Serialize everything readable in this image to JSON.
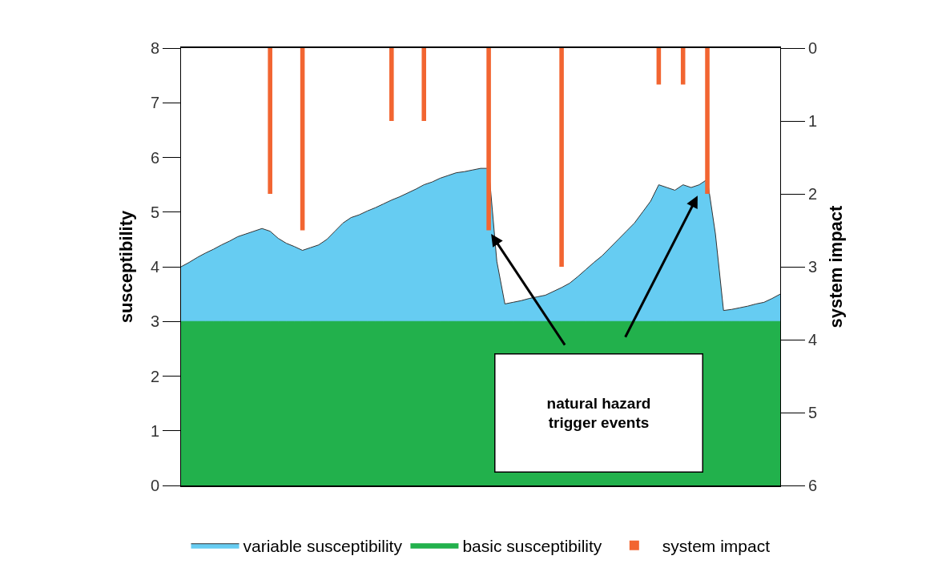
{
  "chart_data": {
    "type": "area",
    "ylabel": "susceptibility",
    "y2label": "system impact",
    "categories": [
      null,
      null,
      null,
      null,
      null,
      null,
      null,
      null,
      null,
      null,
      null,
      null,
      null,
      null,
      null,
      null,
      null,
      null,
      null,
      null,
      null,
      null,
      null,
      null,
      null,
      null,
      null,
      null,
      null,
      null,
      null,
      null,
      null,
      null,
      null,
      null,
      null,
      null,
      null,
      null,
      null,
      null,
      null,
      null,
      null,
      null,
      null,
      null,
      null,
      null,
      null,
      null,
      null,
      null,
      null,
      null,
      null,
      null,
      null,
      null,
      null,
      null,
      null,
      null,
      null,
      null,
      null,
      null,
      null,
      null,
      null,
      null,
      null,
      null,
      null
    ],
    "series": [
      {
        "name": "variable susceptibility",
        "type": "area",
        "color": "#66ccf2",
        "values": [
          4.0,
          4.08,
          4.17,
          4.25,
          4.32,
          4.4,
          4.47,
          4.55,
          4.6,
          4.65,
          4.7,
          4.65,
          4.52,
          4.43,
          4.37,
          4.3,
          4.35,
          4.4,
          4.5,
          4.65,
          4.8,
          4.9,
          4.95,
          5.02,
          5.08,
          5.15,
          5.22,
          5.28,
          5.35,
          5.42,
          5.5,
          5.55,
          5.62,
          5.67,
          5.72,
          5.74,
          5.77,
          5.8,
          5.8,
          4.1,
          3.32,
          3.35,
          3.38,
          3.42,
          3.45,
          3.48,
          3.55,
          3.62,
          3.7,
          3.82,
          3.95,
          4.08,
          4.2,
          4.35,
          4.5,
          4.65,
          4.8,
          5.0,
          5.2,
          5.5,
          5.45,
          5.4,
          5.5,
          5.45,
          5.5,
          5.6,
          4.6,
          3.2,
          3.22,
          3.25,
          3.28,
          3.32,
          3.35,
          3.42,
          3.5
        ]
      },
      {
        "name": "basic susceptibility",
        "type": "area",
        "color": "#22b14c",
        "values": [
          3,
          3,
          3,
          3,
          3,
          3,
          3,
          3,
          3,
          3,
          3,
          3,
          3,
          3,
          3,
          3,
          3,
          3,
          3,
          3,
          3,
          3,
          3,
          3,
          3,
          3,
          3,
          3,
          3,
          3,
          3,
          3,
          3,
          3,
          3,
          3,
          3,
          3,
          3,
          3,
          3,
          3,
          3,
          3,
          3,
          3,
          3,
          3,
          3,
          3,
          3,
          3,
          3,
          3,
          3,
          3,
          3,
          3,
          3,
          3,
          3,
          3,
          3,
          3,
          3,
          3,
          3,
          3,
          3,
          3,
          3,
          3,
          3,
          3,
          3
        ]
      },
      {
        "name": "system impact",
        "type": "bar",
        "axis": "y2",
        "color": "#f26531",
        "values": [
          null,
          null,
          null,
          null,
          null,
          null,
          null,
          null,
          null,
          null,
          null,
          2.0,
          null,
          null,
          null,
          2.5,
          null,
          null,
          null,
          null,
          null,
          null,
          null,
          null,
          null,
          null,
          1.0,
          null,
          null,
          null,
          1.0,
          null,
          null,
          null,
          null,
          null,
          null,
          null,
          2.5,
          null,
          null,
          null,
          null,
          null,
          null,
          null,
          null,
          3.0,
          null,
          null,
          null,
          null,
          null,
          null,
          null,
          null,
          null,
          null,
          null,
          0.5,
          null,
          null,
          0.5,
          null,
          null,
          2.0,
          null,
          null,
          null,
          null,
          null,
          null,
          null,
          null,
          null
        ]
      }
    ],
    "ylim": [
      0,
      8
    ],
    "yticks": [
      0,
      1,
      2,
      3,
      4,
      5,
      6,
      7,
      8
    ],
    "y2lim": [
      6,
      0
    ],
    "y2ticks": [
      0,
      1,
      2,
      3,
      4,
      5,
      6
    ],
    "grid": false,
    "legend": "bottom",
    "annotations": [
      "natural hazard trigger events"
    ]
  }
}
